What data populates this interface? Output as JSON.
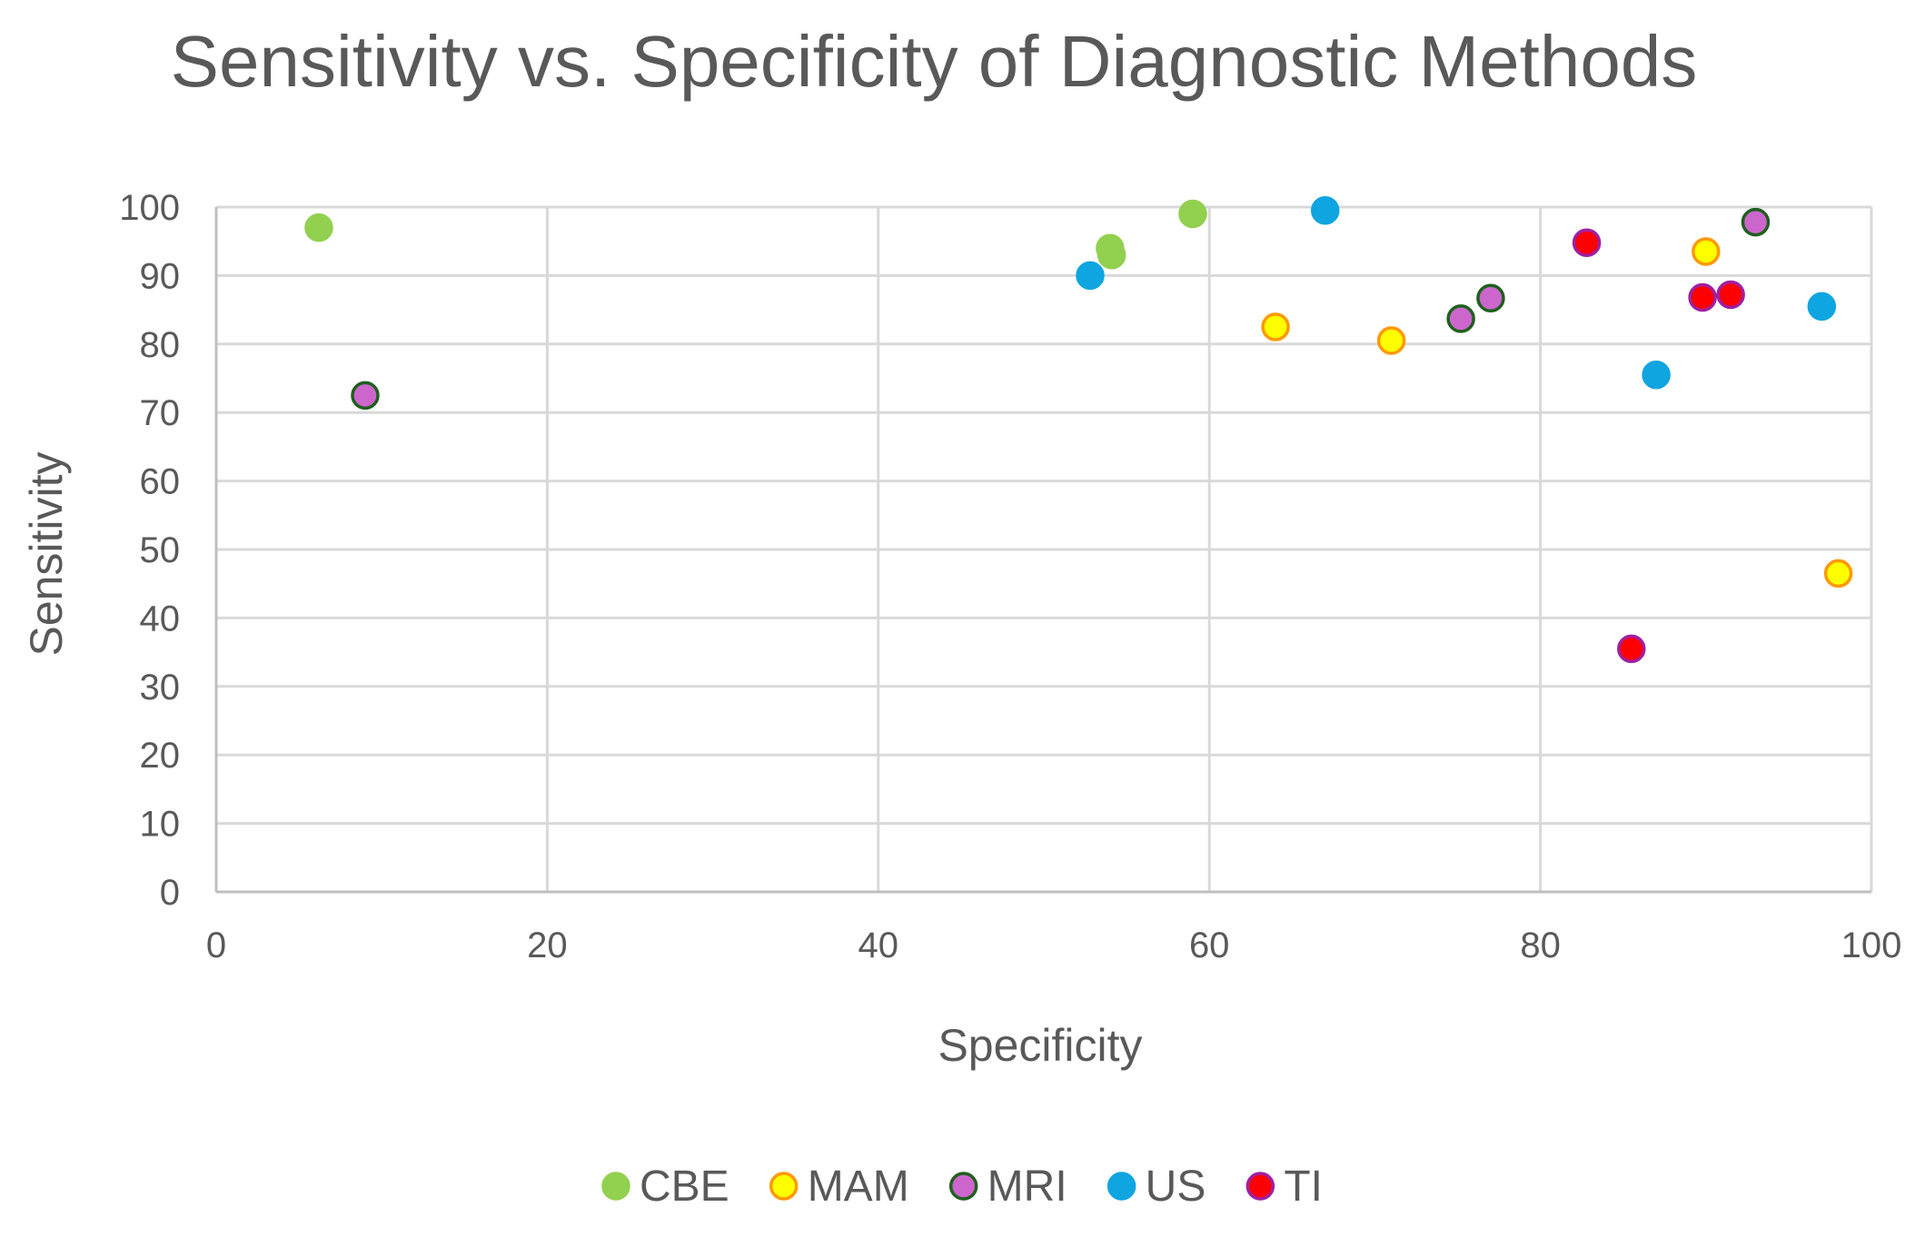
{
  "chart_data": {
    "type": "scatter",
    "title": "Sensitivity vs. Specificity of Diagnostic Methods",
    "xlabel": "Specificity",
    "ylabel": "Sensitivity",
    "xlim": [
      0,
      100
    ],
    "ylim": [
      0,
      100
    ],
    "xticks": [
      0,
      20,
      40,
      60,
      80,
      100
    ],
    "yticks": [
      0,
      10,
      20,
      30,
      40,
      50,
      60,
      70,
      80,
      90,
      100
    ],
    "grid": true,
    "legend_position": "bottom",
    "series": [
      {
        "name": "CBE",
        "fill": "#92d050",
        "stroke": "#92d050",
        "points": [
          {
            "x": 6.2,
            "y": 97
          },
          {
            "x": 54,
            "y": 94
          },
          {
            "x": 54.1,
            "y": 93
          },
          {
            "x": 59,
            "y": 99
          }
        ]
      },
      {
        "name": "MAM",
        "fill": "#ffff00",
        "stroke": "#ff9900",
        "points": [
          {
            "x": 64,
            "y": 82.5
          },
          {
            "x": 71,
            "y": 80.5
          },
          {
            "x": 90,
            "y": 93.5
          },
          {
            "x": 98,
            "y": 46.5
          }
        ]
      },
      {
        "name": "MRI",
        "fill": "#cc66cc",
        "stroke": "#1f5f1f",
        "points": [
          {
            "x": 9,
            "y": 72.5
          },
          {
            "x": 75.2,
            "y": 83.7
          },
          {
            "x": 77,
            "y": 86.7
          },
          {
            "x": 93,
            "y": 97.8
          }
        ]
      },
      {
        "name": "US",
        "fill": "#0ea5e0",
        "stroke": "#0ea5e0",
        "points": [
          {
            "x": 52.8,
            "y": 90
          },
          {
            "x": 67,
            "y": 99.5
          },
          {
            "x": 87,
            "y": 75.5
          },
          {
            "x": 97,
            "y": 85.5
          }
        ]
      },
      {
        "name": "TI",
        "fill": "#ff0000",
        "stroke": "#a020a0",
        "points": [
          {
            "x": 82.8,
            "y": 94.8
          },
          {
            "x": 85.5,
            "y": 35.5
          },
          {
            "x": 89.8,
            "y": 86.8
          },
          {
            "x": 91.5,
            "y": 87.2
          }
        ]
      }
    ]
  }
}
